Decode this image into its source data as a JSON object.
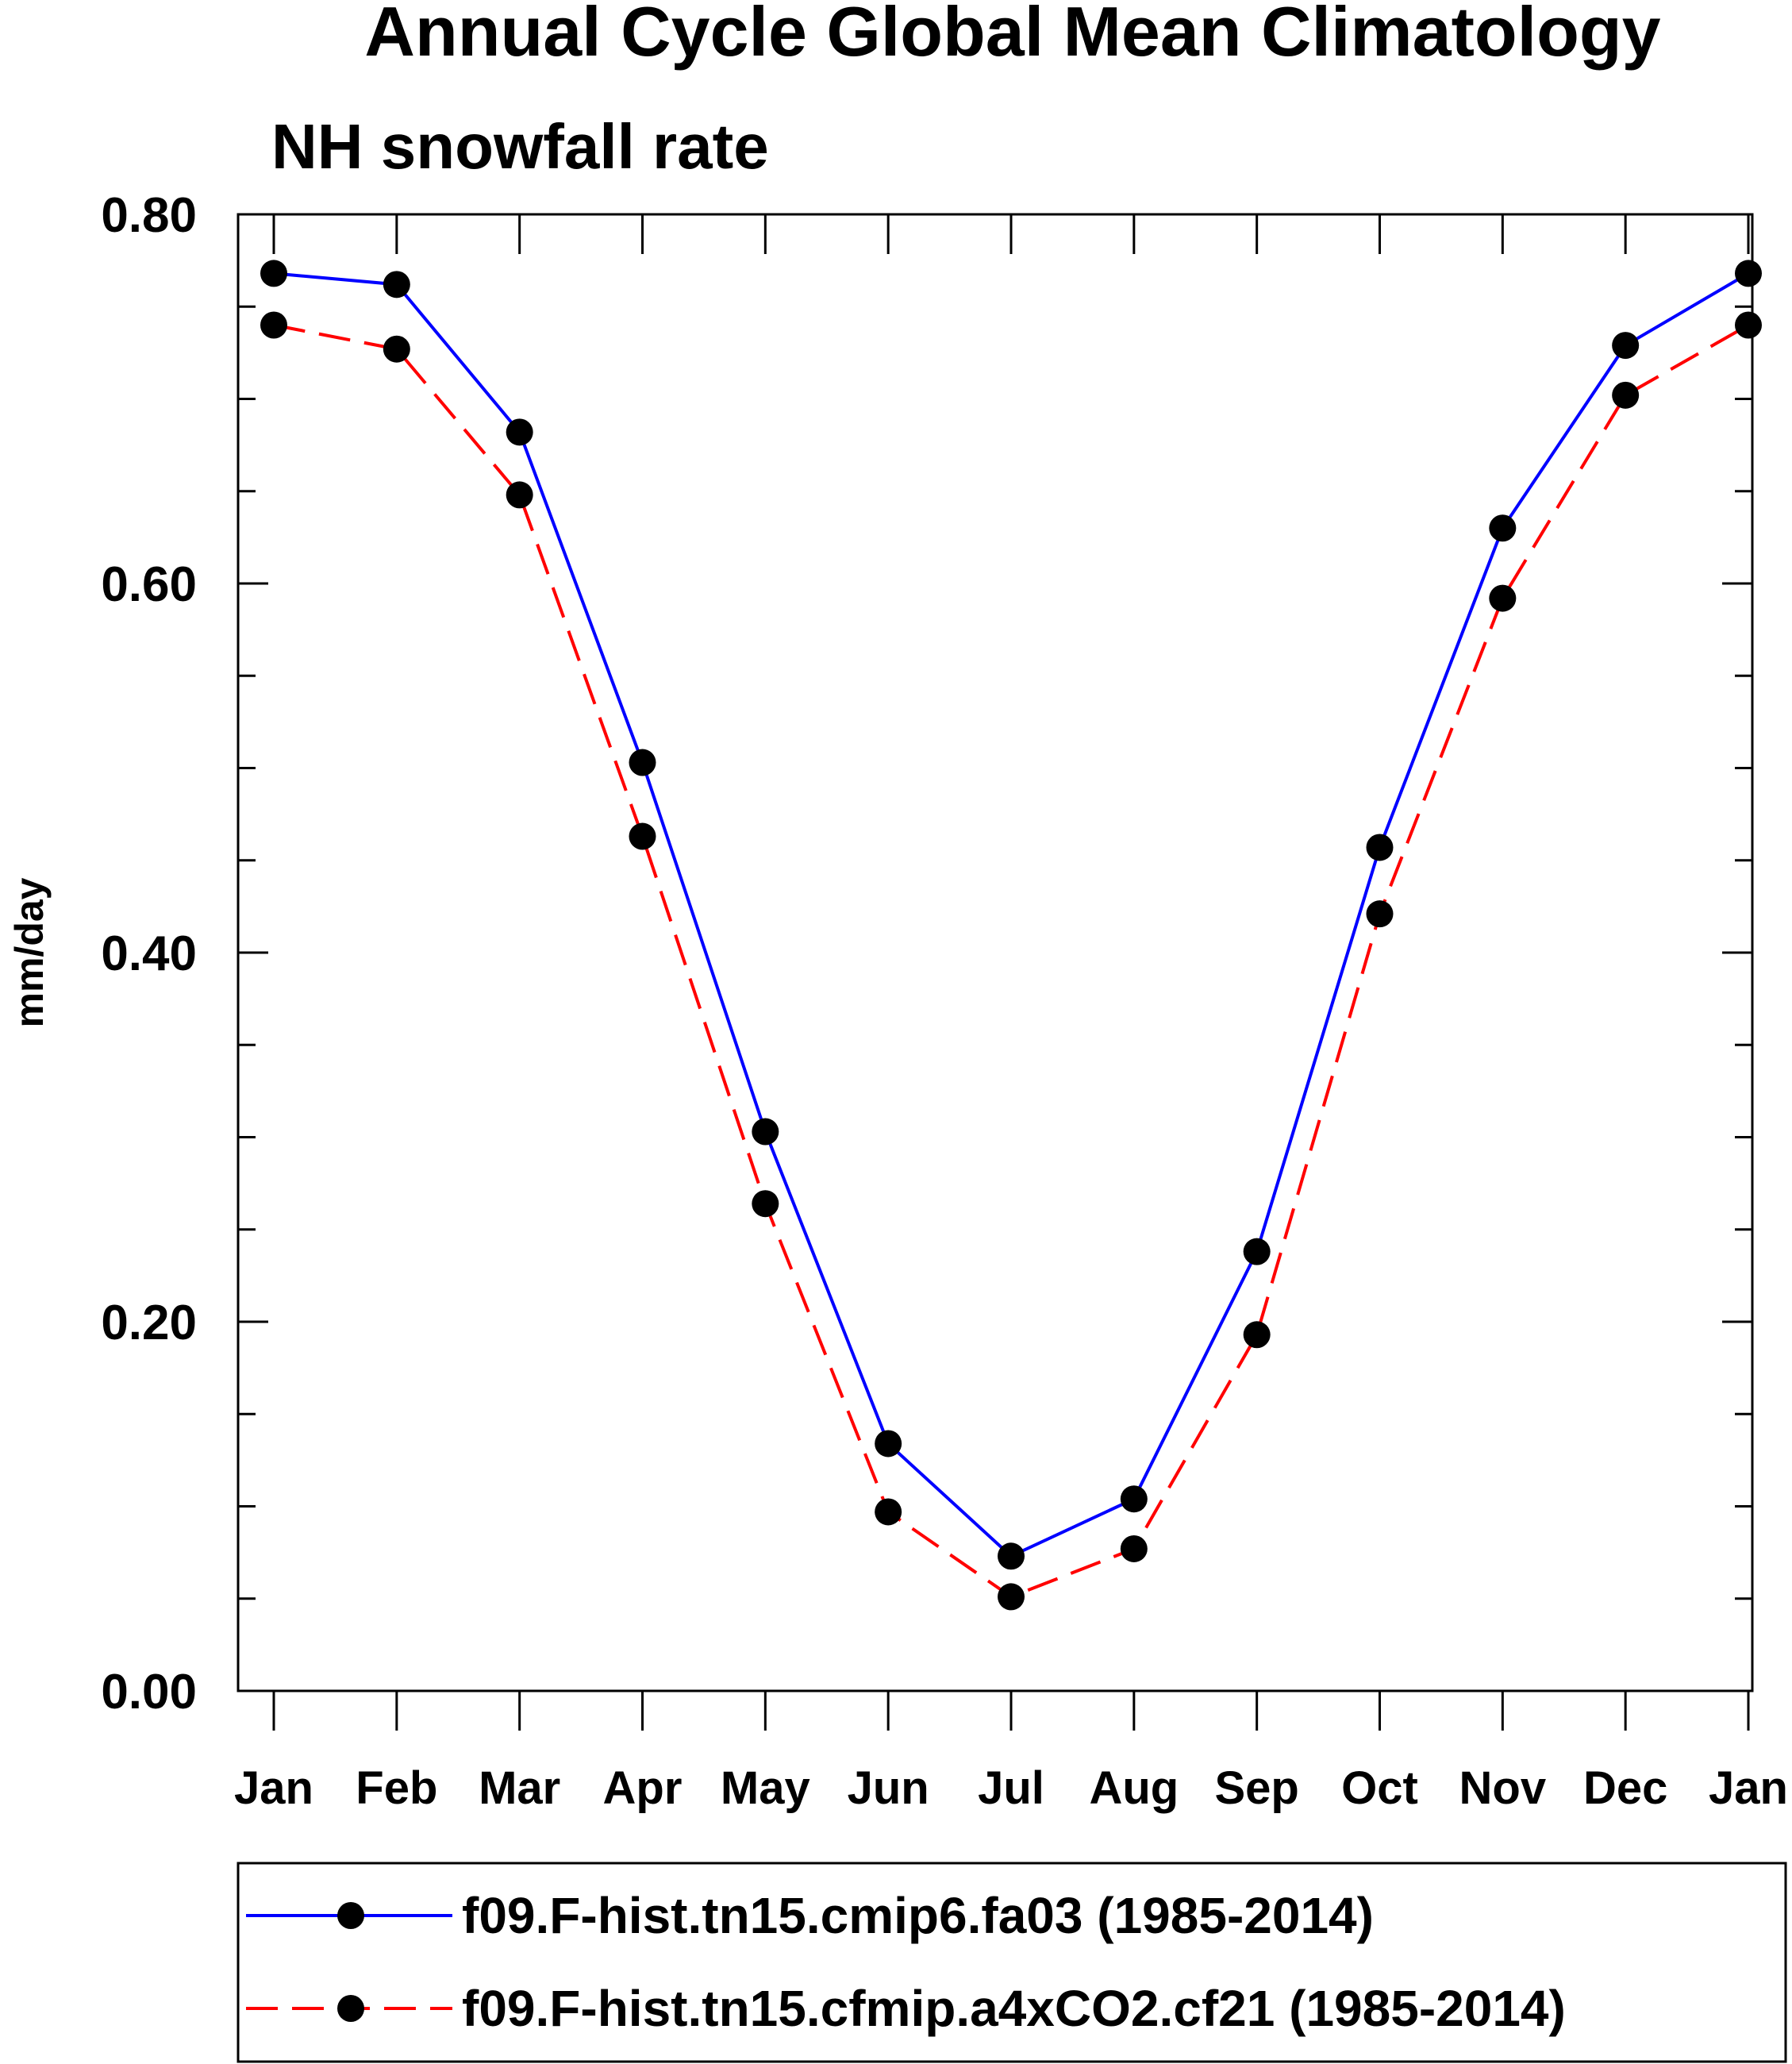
{
  "chart_data": {
    "type": "line",
    "title": "Annual Cycle Global Mean Climatology",
    "subtitle": "NH snowfall rate",
    "xlabel": "",
    "ylabel": "mm/day",
    "ylim": [
      0.0,
      0.8
    ],
    "yticks": [
      "0.00",
      "0.20",
      "0.40",
      "0.60",
      "0.80"
    ],
    "categories": [
      "Jan",
      "Feb",
      "Mar",
      "Apr",
      "May",
      "Jun",
      "Jul",
      "Aug",
      "Sep",
      "Oct",
      "Nov",
      "Dec",
      "Jan"
    ],
    "grid": false,
    "legend_position": "bottom",
    "series": [
      {
        "name": "f09.F-hist.tn15.cmip6.fa03 (1985-2014)",
        "color": "#0000ff",
        "line_style": "solid",
        "marker": "filled-circle",
        "values": [
          0.768,
          0.762,
          0.682,
          0.503,
          0.303,
          0.134,
          0.073,
          0.104,
          0.238,
          0.457,
          0.63,
          0.729,
          0.768
        ]
      },
      {
        "name": "f09.F-hist.tn15.cfmip.a4xCO2.cf21 (1985-2014)",
        "color": "#ff0000",
        "line_style": "dashed",
        "marker": "filled-circle",
        "values": [
          0.74,
          0.727,
          0.648,
          0.463,
          0.264,
          0.097,
          0.051,
          0.077,
          0.193,
          0.421,
          0.592,
          0.702,
          0.74
        ]
      }
    ]
  }
}
